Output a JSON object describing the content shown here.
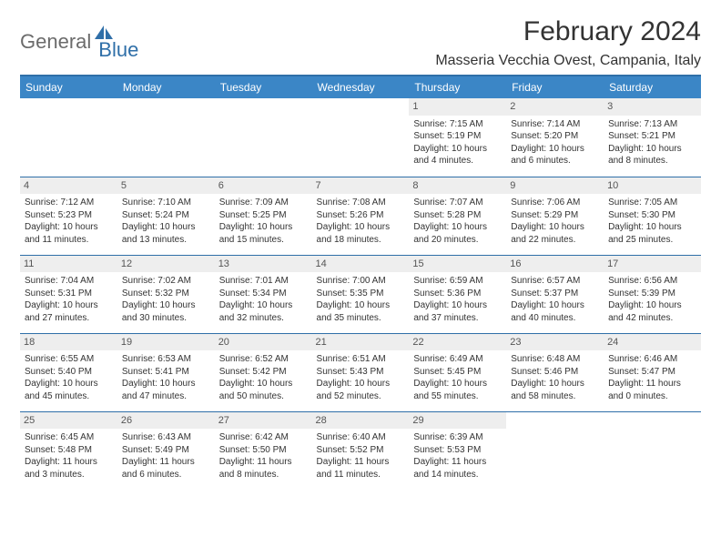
{
  "brand": {
    "part1": "General",
    "part2": "Blue"
  },
  "title": "February 2024",
  "location": "Masseria Vecchia Ovest, Campania, Italy",
  "colors": {
    "header_bg": "#3b86c6",
    "header_text": "#ffffff",
    "rule": "#2f6fa8",
    "daynum_bg": "#eeeeee",
    "text": "#333333",
    "brand_gray": "#6b6b6b",
    "brand_blue": "#2f6fa8",
    "background": "#ffffff"
  },
  "typography": {
    "title_fontsize": 30,
    "location_fontsize": 16,
    "header_fontsize": 12,
    "cell_fontsize": 10,
    "daynum_fontsize": 11
  },
  "day_headers": [
    "Sunday",
    "Monday",
    "Tuesday",
    "Wednesday",
    "Thursday",
    "Friday",
    "Saturday"
  ],
  "weeks": [
    [
      {
        "n": "",
        "sr": "",
        "ss": "",
        "dl": ""
      },
      {
        "n": "",
        "sr": "",
        "ss": "",
        "dl": ""
      },
      {
        "n": "",
        "sr": "",
        "ss": "",
        "dl": ""
      },
      {
        "n": "",
        "sr": "",
        "ss": "",
        "dl": ""
      },
      {
        "n": "1",
        "sr": "Sunrise: 7:15 AM",
        "ss": "Sunset: 5:19 PM",
        "dl": "Daylight: 10 hours and 4 minutes."
      },
      {
        "n": "2",
        "sr": "Sunrise: 7:14 AM",
        "ss": "Sunset: 5:20 PM",
        "dl": "Daylight: 10 hours and 6 minutes."
      },
      {
        "n": "3",
        "sr": "Sunrise: 7:13 AM",
        "ss": "Sunset: 5:21 PM",
        "dl": "Daylight: 10 hours and 8 minutes."
      }
    ],
    [
      {
        "n": "4",
        "sr": "Sunrise: 7:12 AM",
        "ss": "Sunset: 5:23 PM",
        "dl": "Daylight: 10 hours and 11 minutes."
      },
      {
        "n": "5",
        "sr": "Sunrise: 7:10 AM",
        "ss": "Sunset: 5:24 PM",
        "dl": "Daylight: 10 hours and 13 minutes."
      },
      {
        "n": "6",
        "sr": "Sunrise: 7:09 AM",
        "ss": "Sunset: 5:25 PM",
        "dl": "Daylight: 10 hours and 15 minutes."
      },
      {
        "n": "7",
        "sr": "Sunrise: 7:08 AM",
        "ss": "Sunset: 5:26 PM",
        "dl": "Daylight: 10 hours and 18 minutes."
      },
      {
        "n": "8",
        "sr": "Sunrise: 7:07 AM",
        "ss": "Sunset: 5:28 PM",
        "dl": "Daylight: 10 hours and 20 minutes."
      },
      {
        "n": "9",
        "sr": "Sunrise: 7:06 AM",
        "ss": "Sunset: 5:29 PM",
        "dl": "Daylight: 10 hours and 22 minutes."
      },
      {
        "n": "10",
        "sr": "Sunrise: 7:05 AM",
        "ss": "Sunset: 5:30 PM",
        "dl": "Daylight: 10 hours and 25 minutes."
      }
    ],
    [
      {
        "n": "11",
        "sr": "Sunrise: 7:04 AM",
        "ss": "Sunset: 5:31 PM",
        "dl": "Daylight: 10 hours and 27 minutes."
      },
      {
        "n": "12",
        "sr": "Sunrise: 7:02 AM",
        "ss": "Sunset: 5:32 PM",
        "dl": "Daylight: 10 hours and 30 minutes."
      },
      {
        "n": "13",
        "sr": "Sunrise: 7:01 AM",
        "ss": "Sunset: 5:34 PM",
        "dl": "Daylight: 10 hours and 32 minutes."
      },
      {
        "n": "14",
        "sr": "Sunrise: 7:00 AM",
        "ss": "Sunset: 5:35 PM",
        "dl": "Daylight: 10 hours and 35 minutes."
      },
      {
        "n": "15",
        "sr": "Sunrise: 6:59 AM",
        "ss": "Sunset: 5:36 PM",
        "dl": "Daylight: 10 hours and 37 minutes."
      },
      {
        "n": "16",
        "sr": "Sunrise: 6:57 AM",
        "ss": "Sunset: 5:37 PM",
        "dl": "Daylight: 10 hours and 40 minutes."
      },
      {
        "n": "17",
        "sr": "Sunrise: 6:56 AM",
        "ss": "Sunset: 5:39 PM",
        "dl": "Daylight: 10 hours and 42 minutes."
      }
    ],
    [
      {
        "n": "18",
        "sr": "Sunrise: 6:55 AM",
        "ss": "Sunset: 5:40 PM",
        "dl": "Daylight: 10 hours and 45 minutes."
      },
      {
        "n": "19",
        "sr": "Sunrise: 6:53 AM",
        "ss": "Sunset: 5:41 PM",
        "dl": "Daylight: 10 hours and 47 minutes."
      },
      {
        "n": "20",
        "sr": "Sunrise: 6:52 AM",
        "ss": "Sunset: 5:42 PM",
        "dl": "Daylight: 10 hours and 50 minutes."
      },
      {
        "n": "21",
        "sr": "Sunrise: 6:51 AM",
        "ss": "Sunset: 5:43 PM",
        "dl": "Daylight: 10 hours and 52 minutes."
      },
      {
        "n": "22",
        "sr": "Sunrise: 6:49 AM",
        "ss": "Sunset: 5:45 PM",
        "dl": "Daylight: 10 hours and 55 minutes."
      },
      {
        "n": "23",
        "sr": "Sunrise: 6:48 AM",
        "ss": "Sunset: 5:46 PM",
        "dl": "Daylight: 10 hours and 58 minutes."
      },
      {
        "n": "24",
        "sr": "Sunrise: 6:46 AM",
        "ss": "Sunset: 5:47 PM",
        "dl": "Daylight: 11 hours and 0 minutes."
      }
    ],
    [
      {
        "n": "25",
        "sr": "Sunrise: 6:45 AM",
        "ss": "Sunset: 5:48 PM",
        "dl": "Daylight: 11 hours and 3 minutes."
      },
      {
        "n": "26",
        "sr": "Sunrise: 6:43 AM",
        "ss": "Sunset: 5:49 PM",
        "dl": "Daylight: 11 hours and 6 minutes."
      },
      {
        "n": "27",
        "sr": "Sunrise: 6:42 AM",
        "ss": "Sunset: 5:50 PM",
        "dl": "Daylight: 11 hours and 8 minutes."
      },
      {
        "n": "28",
        "sr": "Sunrise: 6:40 AM",
        "ss": "Sunset: 5:52 PM",
        "dl": "Daylight: 11 hours and 11 minutes."
      },
      {
        "n": "29",
        "sr": "Sunrise: 6:39 AM",
        "ss": "Sunset: 5:53 PM",
        "dl": "Daylight: 11 hours and 14 minutes."
      },
      {
        "n": "",
        "sr": "",
        "ss": "",
        "dl": ""
      },
      {
        "n": "",
        "sr": "",
        "ss": "",
        "dl": ""
      }
    ]
  ]
}
